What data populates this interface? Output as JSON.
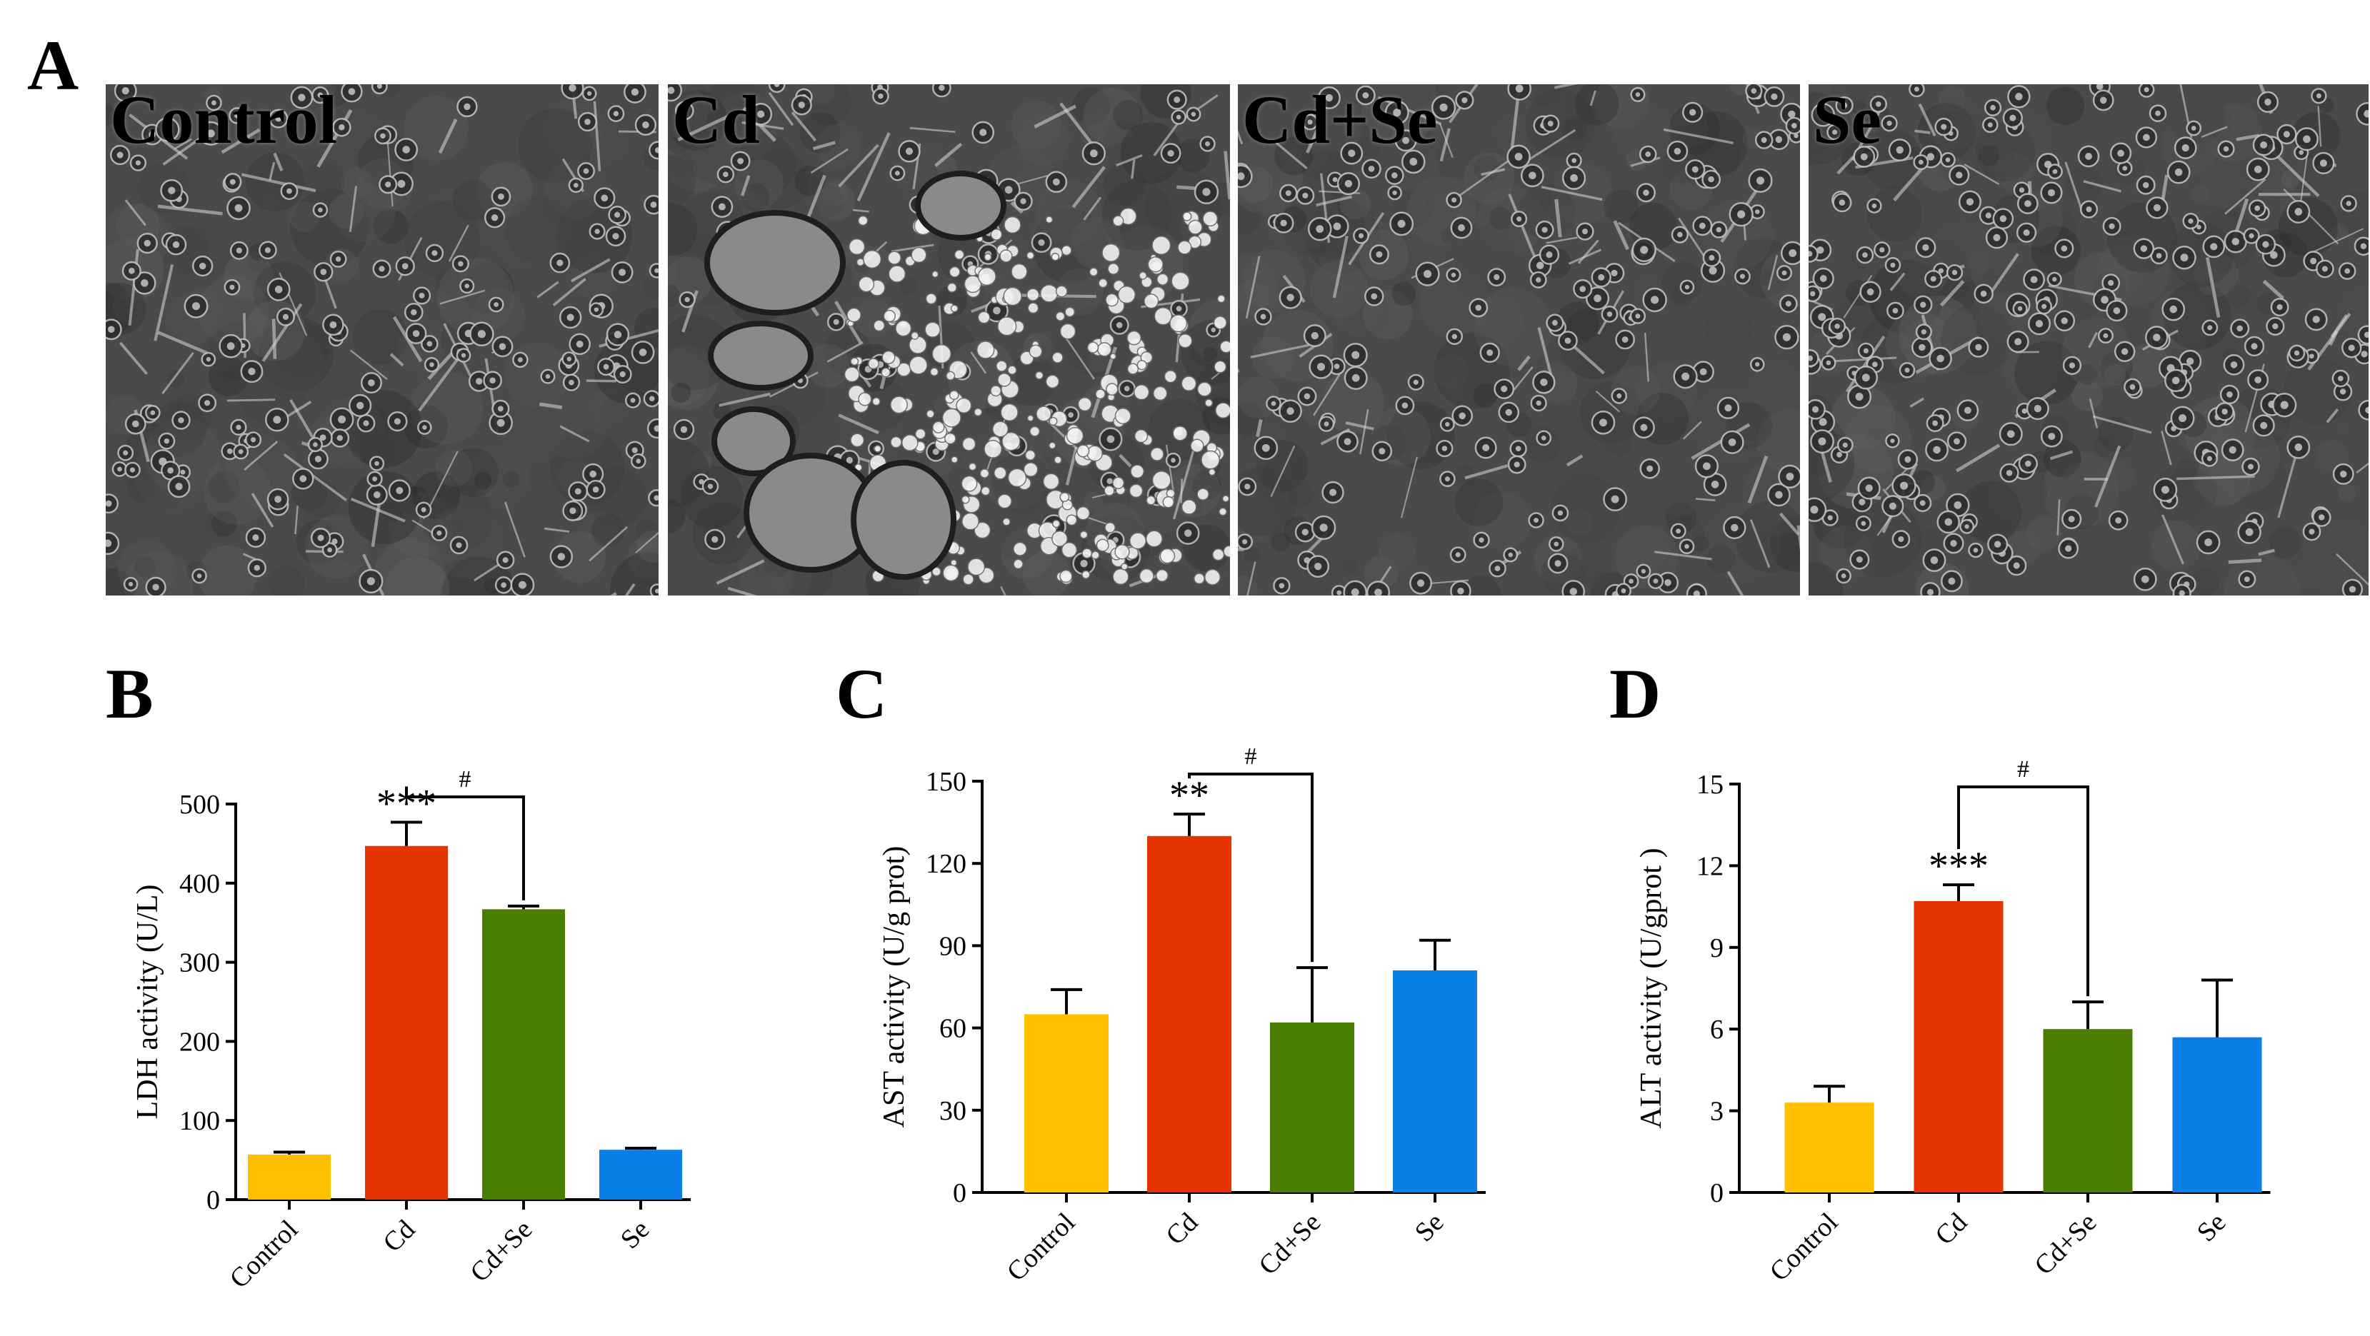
{
  "figure": {
    "panel_letters": [
      "A",
      "B",
      "C",
      "D"
    ],
    "micrographs": [
      {
        "label": "Control"
      },
      {
        "label": "Cd"
      },
      {
        "label": "Cd+Se"
      },
      {
        "label": "Se"
      }
    ]
  },
  "colors": {
    "Control": "#ffc000",
    "Cd": "#e53400",
    "Cd+Se": "#4a7e00",
    "Se": "#0a7fe8"
  },
  "chart_data": [
    {
      "panel": "B",
      "type": "bar",
      "categories": [
        "Control",
        "Cd",
        "Cd+Se",
        "Se"
      ],
      "values": [
        57,
        447,
        367,
        63
      ],
      "errors": [
        3,
        30,
        4,
        2
      ],
      "ylabel": "LDH activity (U/L)",
      "ylim": [
        0,
        500
      ],
      "yticks": [
        0,
        100,
        200,
        300,
        400,
        500
      ],
      "significance": [
        {
          "category": "Cd",
          "label": "***"
        }
      ],
      "comparison": {
        "from": "Cd",
        "to": "Cd+Se",
        "label": "#"
      }
    },
    {
      "panel": "C",
      "type": "bar",
      "categories": [
        "Control",
        "Cd",
        "Cd+Se",
        "Se"
      ],
      "values": [
        65,
        130,
        62,
        81
      ],
      "errors": [
        9,
        8,
        20,
        11
      ],
      "ylabel": "AST activity (U/g prot)",
      "ylim": [
        0,
        150
      ],
      "yticks": [
        0,
        30,
        60,
        90,
        120,
        150
      ],
      "significance": [
        {
          "category": "Cd",
          "label": "**"
        }
      ],
      "comparison": {
        "from": "Cd",
        "to": "Cd+Se",
        "label": "#"
      }
    },
    {
      "panel": "D",
      "type": "bar",
      "categories": [
        "Control",
        "Cd",
        "Cd+Se",
        "Se"
      ],
      "values": [
        3.3,
        10.7,
        6.0,
        5.7
      ],
      "errors": [
        0.6,
        0.6,
        1.0,
        2.1
      ],
      "ylabel": "ALT activity (U/gprot )",
      "ylim": [
        0,
        15
      ],
      "yticks": [
        0,
        3,
        6,
        9,
        12,
        15
      ],
      "significance": [
        {
          "category": "Cd",
          "label": "***"
        }
      ],
      "comparison": {
        "from": "Cd",
        "to": "Cd+Se",
        "label": "#"
      }
    }
  ]
}
